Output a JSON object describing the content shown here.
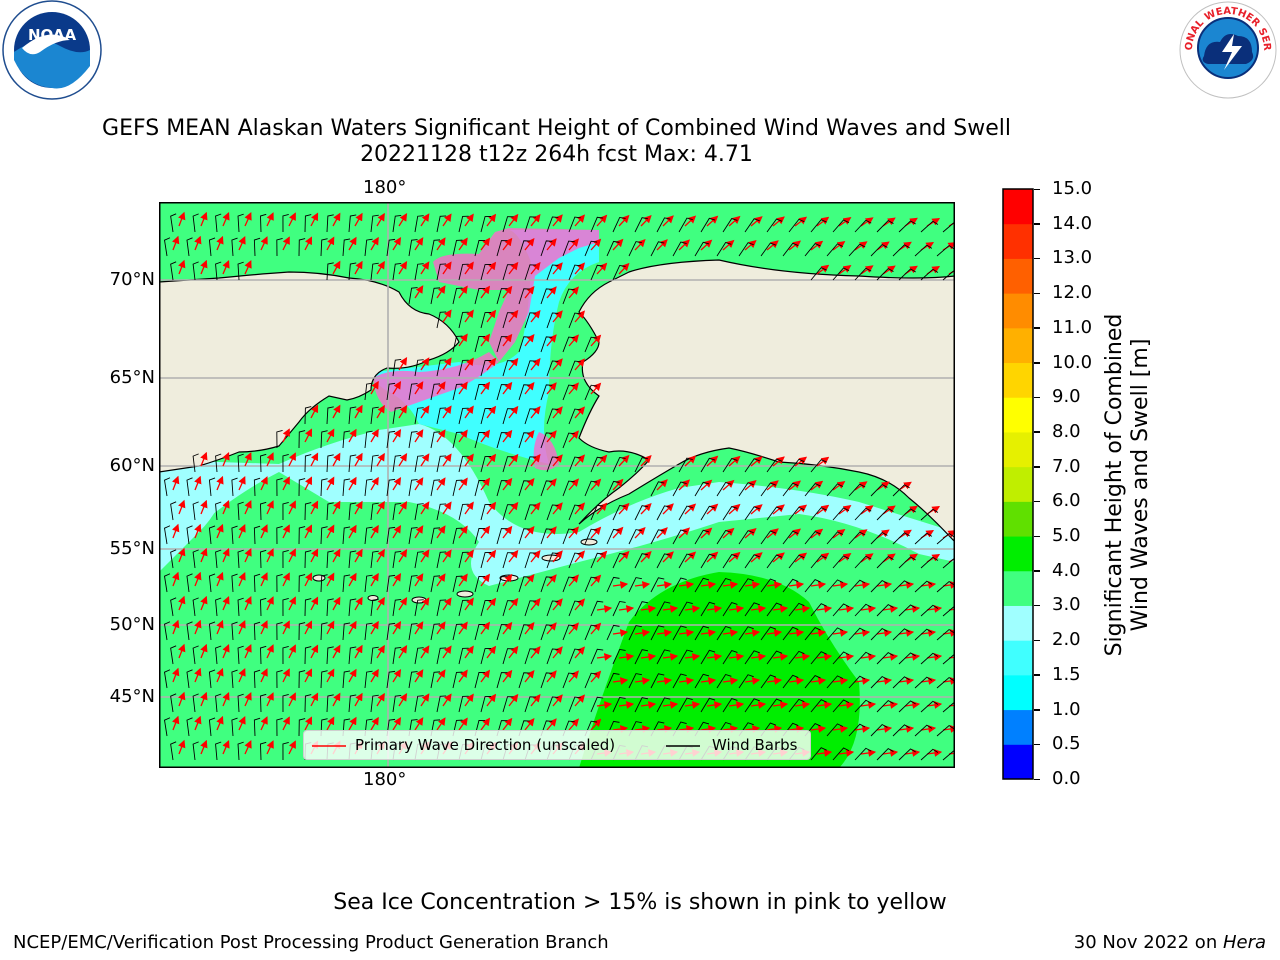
{
  "header": {
    "title_line1": "GEFS MEAN Alaskan Waters Significant Height of Combined Wind Waves and Swell",
    "title_line2": "20221128 t12z 264h fcst   Max: 4.71"
  },
  "logos": {
    "left": "NOAA",
    "right": "NATIONAL WEATHER SERVICE"
  },
  "map": {
    "lon_labels": {
      "top": "180°",
      "bottom": "180°"
    },
    "lat_labels": [
      "70°N",
      "65°N",
      "60°N",
      "55°N",
      "50°N",
      "45°N"
    ],
    "colors": {
      "land": "#efeddd",
      "border": "#000000",
      "grid": "#b0b0b0"
    }
  },
  "legend": {
    "wave_direction": "Primary Wave Direction (unscaled)",
    "wind_barbs": "Wind Barbs",
    "wave_color": "#ff0000",
    "barb_color": "#000000"
  },
  "colorbar": {
    "label_line1": "Significant Height of Combined",
    "label_line2": "Wind Waves and Swell [m]",
    "ticks": [
      "0.0",
      "0.5",
      "1.0",
      "1.5",
      "2.0",
      "3.0",
      "4.0",
      "5.0",
      "6.0",
      "7.0",
      "8.0",
      "9.0",
      "10.0",
      "11.0",
      "12.0",
      "13.0",
      "14.0",
      "15.0"
    ],
    "colors": [
      "#0000ff",
      "#0080ff",
      "#00ffff",
      "#40ffff",
      "#a0ffff",
      "#40ff80",
      "#00ee00",
      "#60e000",
      "#c0ee00",
      "#e6f000",
      "#ffff00",
      "#ffd500",
      "#ffb000",
      "#ff8c00",
      "#ff6000",
      "#ff3000",
      "#ff0000"
    ]
  },
  "footer": {
    "note": "Sea Ice Concentration > 15% is shown in pink to yellow",
    "left": "NCEP/EMC/Verification Post Processing Product Generation Branch",
    "right_prefix": "30 Nov 2022 on ",
    "right_host": "Hera"
  }
}
